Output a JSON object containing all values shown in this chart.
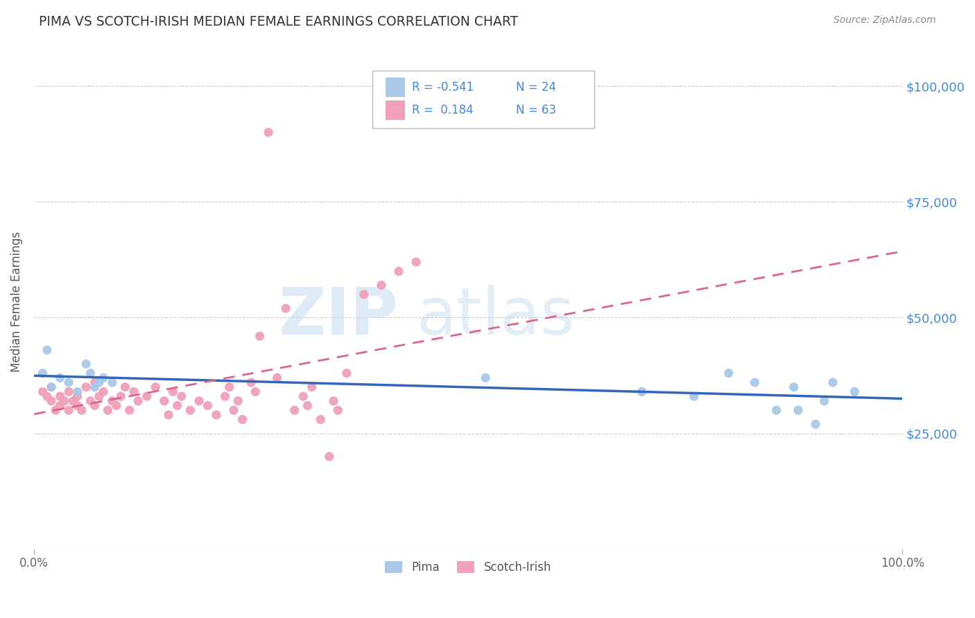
{
  "title": "PIMA VS SCOTCH-IRISH MEDIAN FEMALE EARNINGS CORRELATION CHART",
  "source": "Source: ZipAtlas.com",
  "ylabel": "Median Female Earnings",
  "xlim": [
    0,
    1
  ],
  "ylim": [
    0,
    107000
  ],
  "yticks": [
    0,
    25000,
    50000,
    75000,
    100000
  ],
  "ytick_labels": [
    "",
    "$25,000",
    "$50,000",
    "$75,000",
    "$100,000"
  ],
  "background_color": "#ffffff",
  "grid_color": "#cccccc",
  "pima_color": "#aac8e8",
  "scotch_color": "#f0a0b8",
  "pima_line_color": "#3366bb",
  "scotch_line_color": "#dd6688",
  "ytick_color": "#4488dd",
  "title_color": "#333333",
  "R_pima": -0.541,
  "N_pima": 24,
  "R_scotch": 0.184,
  "N_scotch": 63,
  "watermark": "ZIPatlas",
  "watermark_color": "#d8e8f0",
  "legend_pima_label": "Pima",
  "legend_scotch_label": "Scotch-Irish",
  "pima_x": [
    0.01,
    0.015,
    0.02,
    0.03,
    0.04,
    0.05,
    0.06,
    0.065,
    0.07,
    0.075,
    0.08,
    0.09,
    0.52,
    0.7,
    0.76,
    0.8,
    0.83,
    0.855,
    0.875,
    0.88,
    0.9,
    0.91,
    0.92,
    0.945
  ],
  "pima_y": [
    38000,
    43000,
    35000,
    37000,
    36000,
    34000,
    40000,
    38000,
    35000,
    36000,
    37000,
    36000,
    37000,
    34000,
    33000,
    38000,
    36000,
    30000,
    35000,
    30000,
    27000,
    32000,
    36000,
    34000
  ],
  "scotch_x": [
    0.01,
    0.015,
    0.02,
    0.02,
    0.025,
    0.03,
    0.03,
    0.035,
    0.04,
    0.04,
    0.045,
    0.05,
    0.05,
    0.055,
    0.06,
    0.065,
    0.07,
    0.07,
    0.075,
    0.08,
    0.085,
    0.09,
    0.095,
    0.1,
    0.105,
    0.11,
    0.115,
    0.12,
    0.13,
    0.14,
    0.15,
    0.155,
    0.16,
    0.165,
    0.17,
    0.18,
    0.19,
    0.2,
    0.21,
    0.22,
    0.225,
    0.23,
    0.235,
    0.24,
    0.25,
    0.255,
    0.27,
    0.28,
    0.3,
    0.31,
    0.315,
    0.32,
    0.33,
    0.345,
    0.35,
    0.36,
    0.38,
    0.4,
    0.42,
    0.44,
    0.26,
    0.29,
    0.34
  ],
  "scotch_y": [
    34000,
    33000,
    32000,
    35000,
    30000,
    31000,
    33000,
    32000,
    34000,
    30000,
    32000,
    33000,
    31000,
    30000,
    35000,
    32000,
    31000,
    36000,
    33000,
    34000,
    30000,
    32000,
    31000,
    33000,
    35000,
    30000,
    34000,
    32000,
    33000,
    35000,
    32000,
    29000,
    34000,
    31000,
    33000,
    30000,
    32000,
    31000,
    29000,
    33000,
    35000,
    30000,
    32000,
    28000,
    36000,
    34000,
    90000,
    37000,
    30000,
    33000,
    31000,
    35000,
    28000,
    32000,
    30000,
    38000,
    55000,
    57000,
    60000,
    62000,
    46000,
    52000,
    20000
  ]
}
